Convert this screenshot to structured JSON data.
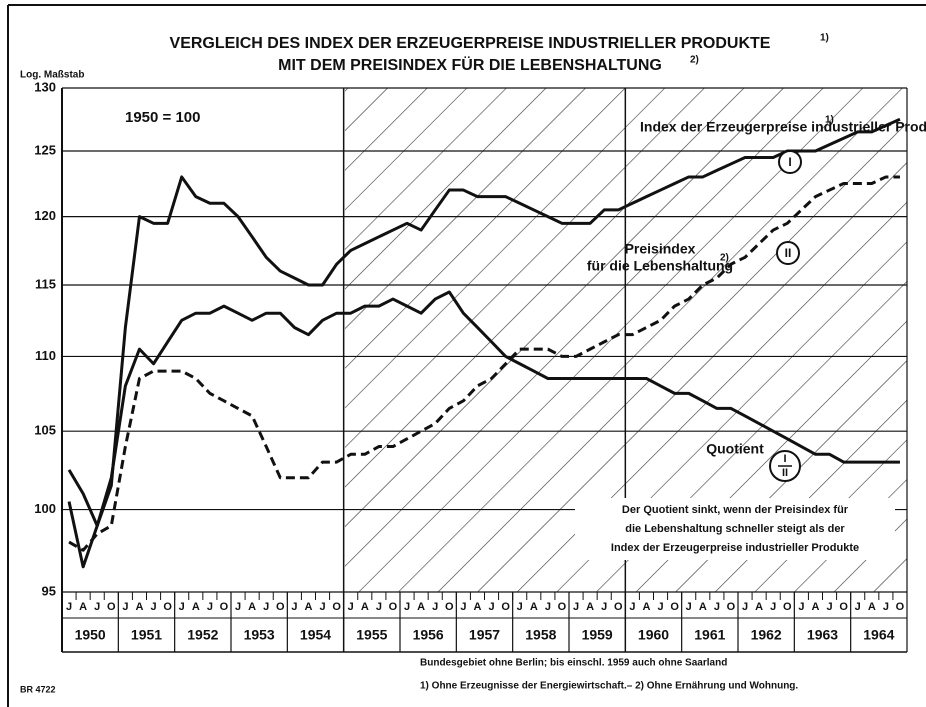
{
  "chart_data": {
    "type": "line",
    "title_lines": [
      "VERGLEICH DES INDEX DER ERZEUGERPREISE INDUSTRIELLER PRODUKTE",
      "MIT DEM PREISINDEX FÜR DIE LEBENSHALTUNG"
    ],
    "title_footnotes": [
      "1)",
      "2)"
    ],
    "y_axis_label": "Log. Maßstab",
    "base_note": "1950 = 100",
    "log_y": true,
    "ylim": [
      95,
      130
    ],
    "yticks": [
      95,
      100,
      105,
      110,
      115,
      120,
      125,
      130
    ],
    "grid": true,
    "years": [
      1950,
      1951,
      1952,
      1953,
      1954,
      1955,
      1956,
      1957,
      1958,
      1959,
      1960,
      1961,
      1962,
      1963,
      1964
    ],
    "quarter_labels": [
      "J",
      "A",
      "J",
      "O"
    ],
    "series": [
      {
        "label_lines": [
          "Index der Erzeugerpreise industrieller Produkte"
        ],
        "footnote": "1)",
        "marker": [
          "I"
        ],
        "color": "#111111",
        "dashed": false,
        "values": [
          102.5,
          101,
          99,
          101.5,
          112,
          120,
          119.5,
          119.5,
          123,
          121.5,
          121,
          121,
          120,
          118.5,
          117,
          116,
          115.5,
          115,
          115,
          116.5,
          117.5,
          118,
          118.5,
          119,
          119.5,
          119,
          120.5,
          122,
          122,
          121.5,
          121.5,
          121.5,
          121,
          120.5,
          120,
          119.5,
          119.5,
          119.5,
          120.5,
          120.5,
          121,
          121.5,
          122,
          122.5,
          123,
          123,
          123.5,
          124,
          124.5,
          124.5,
          124.5,
          125,
          125,
          125,
          125.5,
          126,
          126.5,
          126.5,
          127,
          127.5
        ]
      },
      {
        "label_lines": [
          "Preisindex",
          "für die Lebenshaltung"
        ],
        "footnote": "2)",
        "marker": [
          "II"
        ],
        "color": "#111111",
        "dashed": true,
        "values": [
          98,
          97.5,
          98.5,
          99,
          104,
          108.5,
          109,
          109,
          109,
          108.5,
          107.5,
          107,
          106.5,
          106,
          104,
          102,
          102,
          102,
          103,
          103,
          103.5,
          103.5,
          104,
          104,
          104.5,
          105,
          105.5,
          106.5,
          107,
          108,
          108.5,
          109.5,
          110.5,
          110.5,
          110.5,
          110,
          110,
          110.5,
          111,
          111.5,
          111.5,
          112,
          112.5,
          113.5,
          114,
          115,
          115.5,
          116.5,
          117,
          118,
          119,
          119.5,
          120.5,
          121.5,
          122,
          122.5,
          122.5,
          122.5,
          123,
          123
        ]
      },
      {
        "label_lines": [
          "Quotient"
        ],
        "marker": [
          "I",
          "II"
        ],
        "color": "#111111",
        "dashed": false,
        "values": [
          100.5,
          96.5,
          99,
          102,
          108,
          110.5,
          109.5,
          111,
          112.5,
          113,
          113,
          113.5,
          113,
          112.5,
          113,
          113,
          112,
          111.5,
          112.5,
          113,
          113,
          113.5,
          113.5,
          114,
          113.5,
          113,
          114,
          114.5,
          113,
          112,
          111,
          110,
          109.5,
          109,
          108.5,
          108.5,
          108.5,
          108.5,
          108.5,
          108.5,
          108.5,
          108.5,
          108,
          107.5,
          107.5,
          107,
          106.5,
          106.5,
          106,
          105.5,
          105,
          104.5,
          104,
          103.5,
          103.5,
          103,
          103,
          103,
          103,
          103
        ]
      }
    ],
    "annotation_lines": [
      "Der Quotient sinkt, wenn der Preisindex für",
      "die Lebenshaltung schneller steigt als der",
      "Index der Erzeugerpreise industrieller Produkte"
    ],
    "footnote_lines": [
      "Bundesgebiet ohne Berlin; bis einschl. 1959 auch ohne Saarland",
      "1) Ohne Erzeugnisse der Energiewirtschaft.– 2) Ohne Ernährung und Wohnung."
    ],
    "source_code": "BR 4722"
  }
}
